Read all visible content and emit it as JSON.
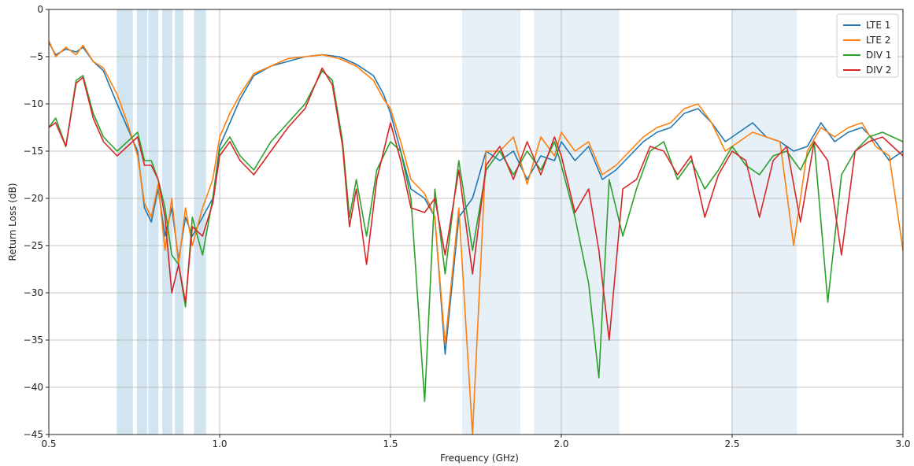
{
  "chart_data": {
    "type": "line",
    "title": "",
    "xlabel": "Frequency (GHz)",
    "ylabel": "Return Loss (dB)",
    "xlim": [
      0.5,
      3.0
    ],
    "ylim": [
      -45,
      0
    ],
    "xticks": [
      0.5,
      1.0,
      1.5,
      2.0,
      2.5,
      3.0
    ],
    "xtick_labels": [
      "0.5",
      "1.0",
      "1.5",
      "2.0",
      "2.5",
      "3.0"
    ],
    "yticks": [
      0,
      -5,
      -10,
      -15,
      -20,
      -25,
      -30,
      -35,
      -40,
      -45
    ],
    "ytick_labels": [
      "0",
      "−5",
      "−10",
      "−15",
      "−20",
      "−25",
      "−30",
      "−35",
      "−40",
      "−45"
    ],
    "grid": true,
    "legend_position": "top-right",
    "shaded_bands": [
      {
        "x0": 0.699,
        "x1": 0.746,
        "color": "#aecde6",
        "opacity": 0.55
      },
      {
        "x0": 0.758,
        "x1": 0.788,
        "color": "#aecde6",
        "opacity": 0.55
      },
      {
        "x0": 0.791,
        "x1": 0.821,
        "color": "#aecde6",
        "opacity": 0.55
      },
      {
        "x0": 0.832,
        "x1": 0.862,
        "color": "#aecde6",
        "opacity": 0.55
      },
      {
        "x0": 0.869,
        "x1": 0.894,
        "color": "#aecde6",
        "opacity": 0.55
      },
      {
        "x0": 0.925,
        "x1": 0.96,
        "color": "#aecde6",
        "opacity": 0.55
      },
      {
        "x0": 1.71,
        "x1": 1.88,
        "color": "#aecde6",
        "opacity": 0.3
      },
      {
        "x0": 1.92,
        "x1": 2.17,
        "color": "#aecde6",
        "opacity": 0.3
      },
      {
        "x0": 2.5,
        "x1": 2.69,
        "color": "#aecde6",
        "opacity": 0.3
      }
    ],
    "series": [
      {
        "name": "LTE 1",
        "color": "#1f77b4",
        "x": [
          0.5,
          0.52,
          0.55,
          0.58,
          0.6,
          0.63,
          0.66,
          0.7,
          0.73,
          0.76,
          0.78,
          0.8,
          0.82,
          0.84,
          0.86,
          0.88,
          0.9,
          0.92,
          0.95,
          0.98,
          1.0,
          1.03,
          1.06,
          1.1,
          1.15,
          1.2,
          1.25,
          1.3,
          1.35,
          1.4,
          1.45,
          1.48,
          1.5,
          1.53,
          1.56,
          1.6,
          1.63,
          1.66,
          1.7,
          1.74,
          1.78,
          1.82,
          1.86,
          1.9,
          1.94,
          1.98,
          2.0,
          2.04,
          2.08,
          2.12,
          2.16,
          2.2,
          2.24,
          2.28,
          2.32,
          2.36,
          2.4,
          2.44,
          2.48,
          2.52,
          2.56,
          2.6,
          2.64,
          2.68,
          2.72,
          2.76,
          2.8,
          2.84,
          2.88,
          2.92,
          2.96,
          3.0
        ],
        "y": [
          -3.5,
          -4.8,
          -4.2,
          -4.5,
          -4.0,
          -5.5,
          -6.5,
          -10.0,
          -12.5,
          -15.0,
          -21.0,
          -22.5,
          -19.0,
          -24.0,
          -21.0,
          -26.5,
          -22.0,
          -24.0,
          -22.0,
          -20.0,
          -14.5,
          -12.0,
          -9.5,
          -7.0,
          -6.0,
          -5.5,
          -5.0,
          -4.8,
          -5.0,
          -5.8,
          -7.0,
          -9.0,
          -11.0,
          -15.0,
          -19.0,
          -20.0,
          -22.0,
          -36.5,
          -22.0,
          -20.0,
          -15.0,
          -16.0,
          -15.0,
          -18.0,
          -15.5,
          -16.0,
          -14.0,
          -16.0,
          -14.5,
          -18.0,
          -17.0,
          -15.5,
          -14.0,
          -13.0,
          -12.5,
          -11.0,
          -10.5,
          -12.0,
          -14.0,
          -13.0,
          -12.0,
          -13.5,
          -14.0,
          -15.0,
          -14.5,
          -12.0,
          -14.0,
          -13.0,
          -12.5,
          -14.0,
          -16.0,
          -15.0
        ]
      },
      {
        "name": "LTE 2",
        "color": "#ff7f0e",
        "x": [
          0.5,
          0.52,
          0.55,
          0.58,
          0.6,
          0.63,
          0.66,
          0.7,
          0.73,
          0.76,
          0.78,
          0.8,
          0.82,
          0.84,
          0.86,
          0.88,
          0.9,
          0.92,
          0.95,
          0.98,
          1.0,
          1.03,
          1.06,
          1.1,
          1.15,
          1.2,
          1.25,
          1.3,
          1.35,
          1.4,
          1.45,
          1.48,
          1.5,
          1.53,
          1.56,
          1.6,
          1.63,
          1.66,
          1.7,
          1.74,
          1.78,
          1.82,
          1.86,
          1.9,
          1.94,
          1.98,
          2.0,
          2.04,
          2.08,
          2.12,
          2.16,
          2.2,
          2.24,
          2.28,
          2.32,
          2.36,
          2.4,
          2.44,
          2.48,
          2.52,
          2.56,
          2.6,
          2.64,
          2.68,
          2.72,
          2.76,
          2.8,
          2.84,
          2.88,
          2.92,
          2.96,
          3.0
        ],
        "y": [
          -3.3,
          -5.0,
          -4.0,
          -4.8,
          -3.8,
          -5.5,
          -6.2,
          -9.0,
          -12.0,
          -15.5,
          -20.5,
          -22.0,
          -18.5,
          -25.5,
          -20.0,
          -27.0,
          -21.0,
          -25.0,
          -21.0,
          -18.0,
          -13.5,
          -11.0,
          -9.0,
          -6.8,
          -6.0,
          -5.2,
          -5.0,
          -4.8,
          -5.2,
          -6.0,
          -7.5,
          -9.5,
          -10.5,
          -14.0,
          -18.0,
          -19.5,
          -22.0,
          -35.5,
          -21.0,
          -45.0,
          -15.0,
          -15.0,
          -13.5,
          -18.5,
          -13.5,
          -15.5,
          -13.0,
          -15.0,
          -14.0,
          -17.5,
          -16.5,
          -15.0,
          -13.5,
          -12.5,
          -12.0,
          -10.5,
          -10.0,
          -12.0,
          -15.0,
          -14.0,
          -13.0,
          -13.5,
          -14.0,
          -25.0,
          -15.0,
          -12.5,
          -13.5,
          -12.5,
          -12.0,
          -14.5,
          -15.5,
          -25.5
        ]
      },
      {
        "name": "DIV 1",
        "color": "#2ca02c",
        "x": [
          0.5,
          0.52,
          0.55,
          0.58,
          0.6,
          0.63,
          0.66,
          0.7,
          0.73,
          0.76,
          0.78,
          0.8,
          0.82,
          0.84,
          0.86,
          0.88,
          0.9,
          0.92,
          0.95,
          0.98,
          1.0,
          1.03,
          1.06,
          1.1,
          1.15,
          1.2,
          1.25,
          1.3,
          1.33,
          1.36,
          1.38,
          1.4,
          1.43,
          1.46,
          1.5,
          1.53,
          1.56,
          1.6,
          1.63,
          1.66,
          1.7,
          1.74,
          1.78,
          1.82,
          1.86,
          1.9,
          1.94,
          1.98,
          2.0,
          2.04,
          2.08,
          2.11,
          2.14,
          2.18,
          2.22,
          2.26,
          2.3,
          2.34,
          2.38,
          2.42,
          2.46,
          2.5,
          2.54,
          2.58,
          2.62,
          2.66,
          2.7,
          2.74,
          2.78,
          2.82,
          2.86,
          2.9,
          2.94,
          3.0
        ],
        "y": [
          -12.5,
          -11.5,
          -14.5,
          -7.5,
          -7.0,
          -11.0,
          -13.5,
          -15.0,
          -14.0,
          -13.0,
          -16.0,
          -16.0,
          -18.0,
          -21.0,
          -26.0,
          -27.0,
          -31.5,
          -22.0,
          -26.0,
          -20.0,
          -15.0,
          -13.5,
          -15.5,
          -17.0,
          -14.0,
          -12.0,
          -10.0,
          -6.5,
          -7.5,
          -14.0,
          -22.0,
          -18.0,
          -24.0,
          -17.0,
          -14.0,
          -15.0,
          -20.0,
          -41.5,
          -19.0,
          -28.0,
          -16.0,
          -25.5,
          -17.0,
          -15.0,
          -17.5,
          -15.0,
          -17.0,
          -14.0,
          -16.5,
          -22.0,
          -29.0,
          -39.0,
          -18.0,
          -24.0,
          -19.0,
          -15.0,
          -14.0,
          -18.0,
          -16.0,
          -19.0,
          -17.0,
          -14.5,
          -16.5,
          -17.5,
          -15.5,
          -15.0,
          -17.0,
          -14.0,
          -31.0,
          -17.5,
          -15.0,
          -13.5,
          -13.0,
          -14.0
        ]
      },
      {
        "name": "DIV 2",
        "color": "#d62728",
        "x": [
          0.5,
          0.52,
          0.55,
          0.58,
          0.6,
          0.63,
          0.66,
          0.7,
          0.73,
          0.76,
          0.78,
          0.8,
          0.82,
          0.84,
          0.86,
          0.88,
          0.9,
          0.92,
          0.95,
          0.98,
          1.0,
          1.03,
          1.06,
          1.1,
          1.15,
          1.2,
          1.25,
          1.3,
          1.33,
          1.36,
          1.38,
          1.4,
          1.43,
          1.46,
          1.5,
          1.53,
          1.56,
          1.6,
          1.63,
          1.66,
          1.7,
          1.74,
          1.78,
          1.82,
          1.86,
          1.9,
          1.94,
          1.98,
          2.0,
          2.04,
          2.08,
          2.11,
          2.14,
          2.18,
          2.22,
          2.26,
          2.3,
          2.34,
          2.38,
          2.42,
          2.46,
          2.5,
          2.54,
          2.58,
          2.62,
          2.66,
          2.7,
          2.74,
          2.78,
          2.82,
          2.86,
          2.9,
          2.94,
          3.0
        ],
        "y": [
          -12.5,
          -12.0,
          -14.5,
          -7.8,
          -7.2,
          -11.5,
          -14.0,
          -15.5,
          -14.5,
          -13.5,
          -16.5,
          -16.5,
          -18.0,
          -22.0,
          -30.0,
          -27.0,
          -31.0,
          -23.0,
          -24.0,
          -20.5,
          -15.5,
          -14.0,
          -16.0,
          -17.5,
          -15.0,
          -12.5,
          -10.5,
          -6.2,
          -8.0,
          -14.5,
          -23.0,
          -19.0,
          -27.0,
          -18.0,
          -12.0,
          -16.0,
          -21.0,
          -21.5,
          -20.0,
          -26.0,
          -17.0,
          -28.0,
          -16.5,
          -14.5,
          -18.0,
          -14.0,
          -17.5,
          -13.5,
          -15.5,
          -21.5,
          -19.0,
          -25.5,
          -35.0,
          -19.0,
          -18.0,
          -14.5,
          -15.0,
          -17.5,
          -15.5,
          -22.0,
          -17.5,
          -15.0,
          -16.0,
          -22.0,
          -16.0,
          -14.5,
          -22.5,
          -14.0,
          -16.0,
          -26.0,
          -15.0,
          -14.0,
          -13.5,
          -15.5
        ]
      }
    ]
  }
}
